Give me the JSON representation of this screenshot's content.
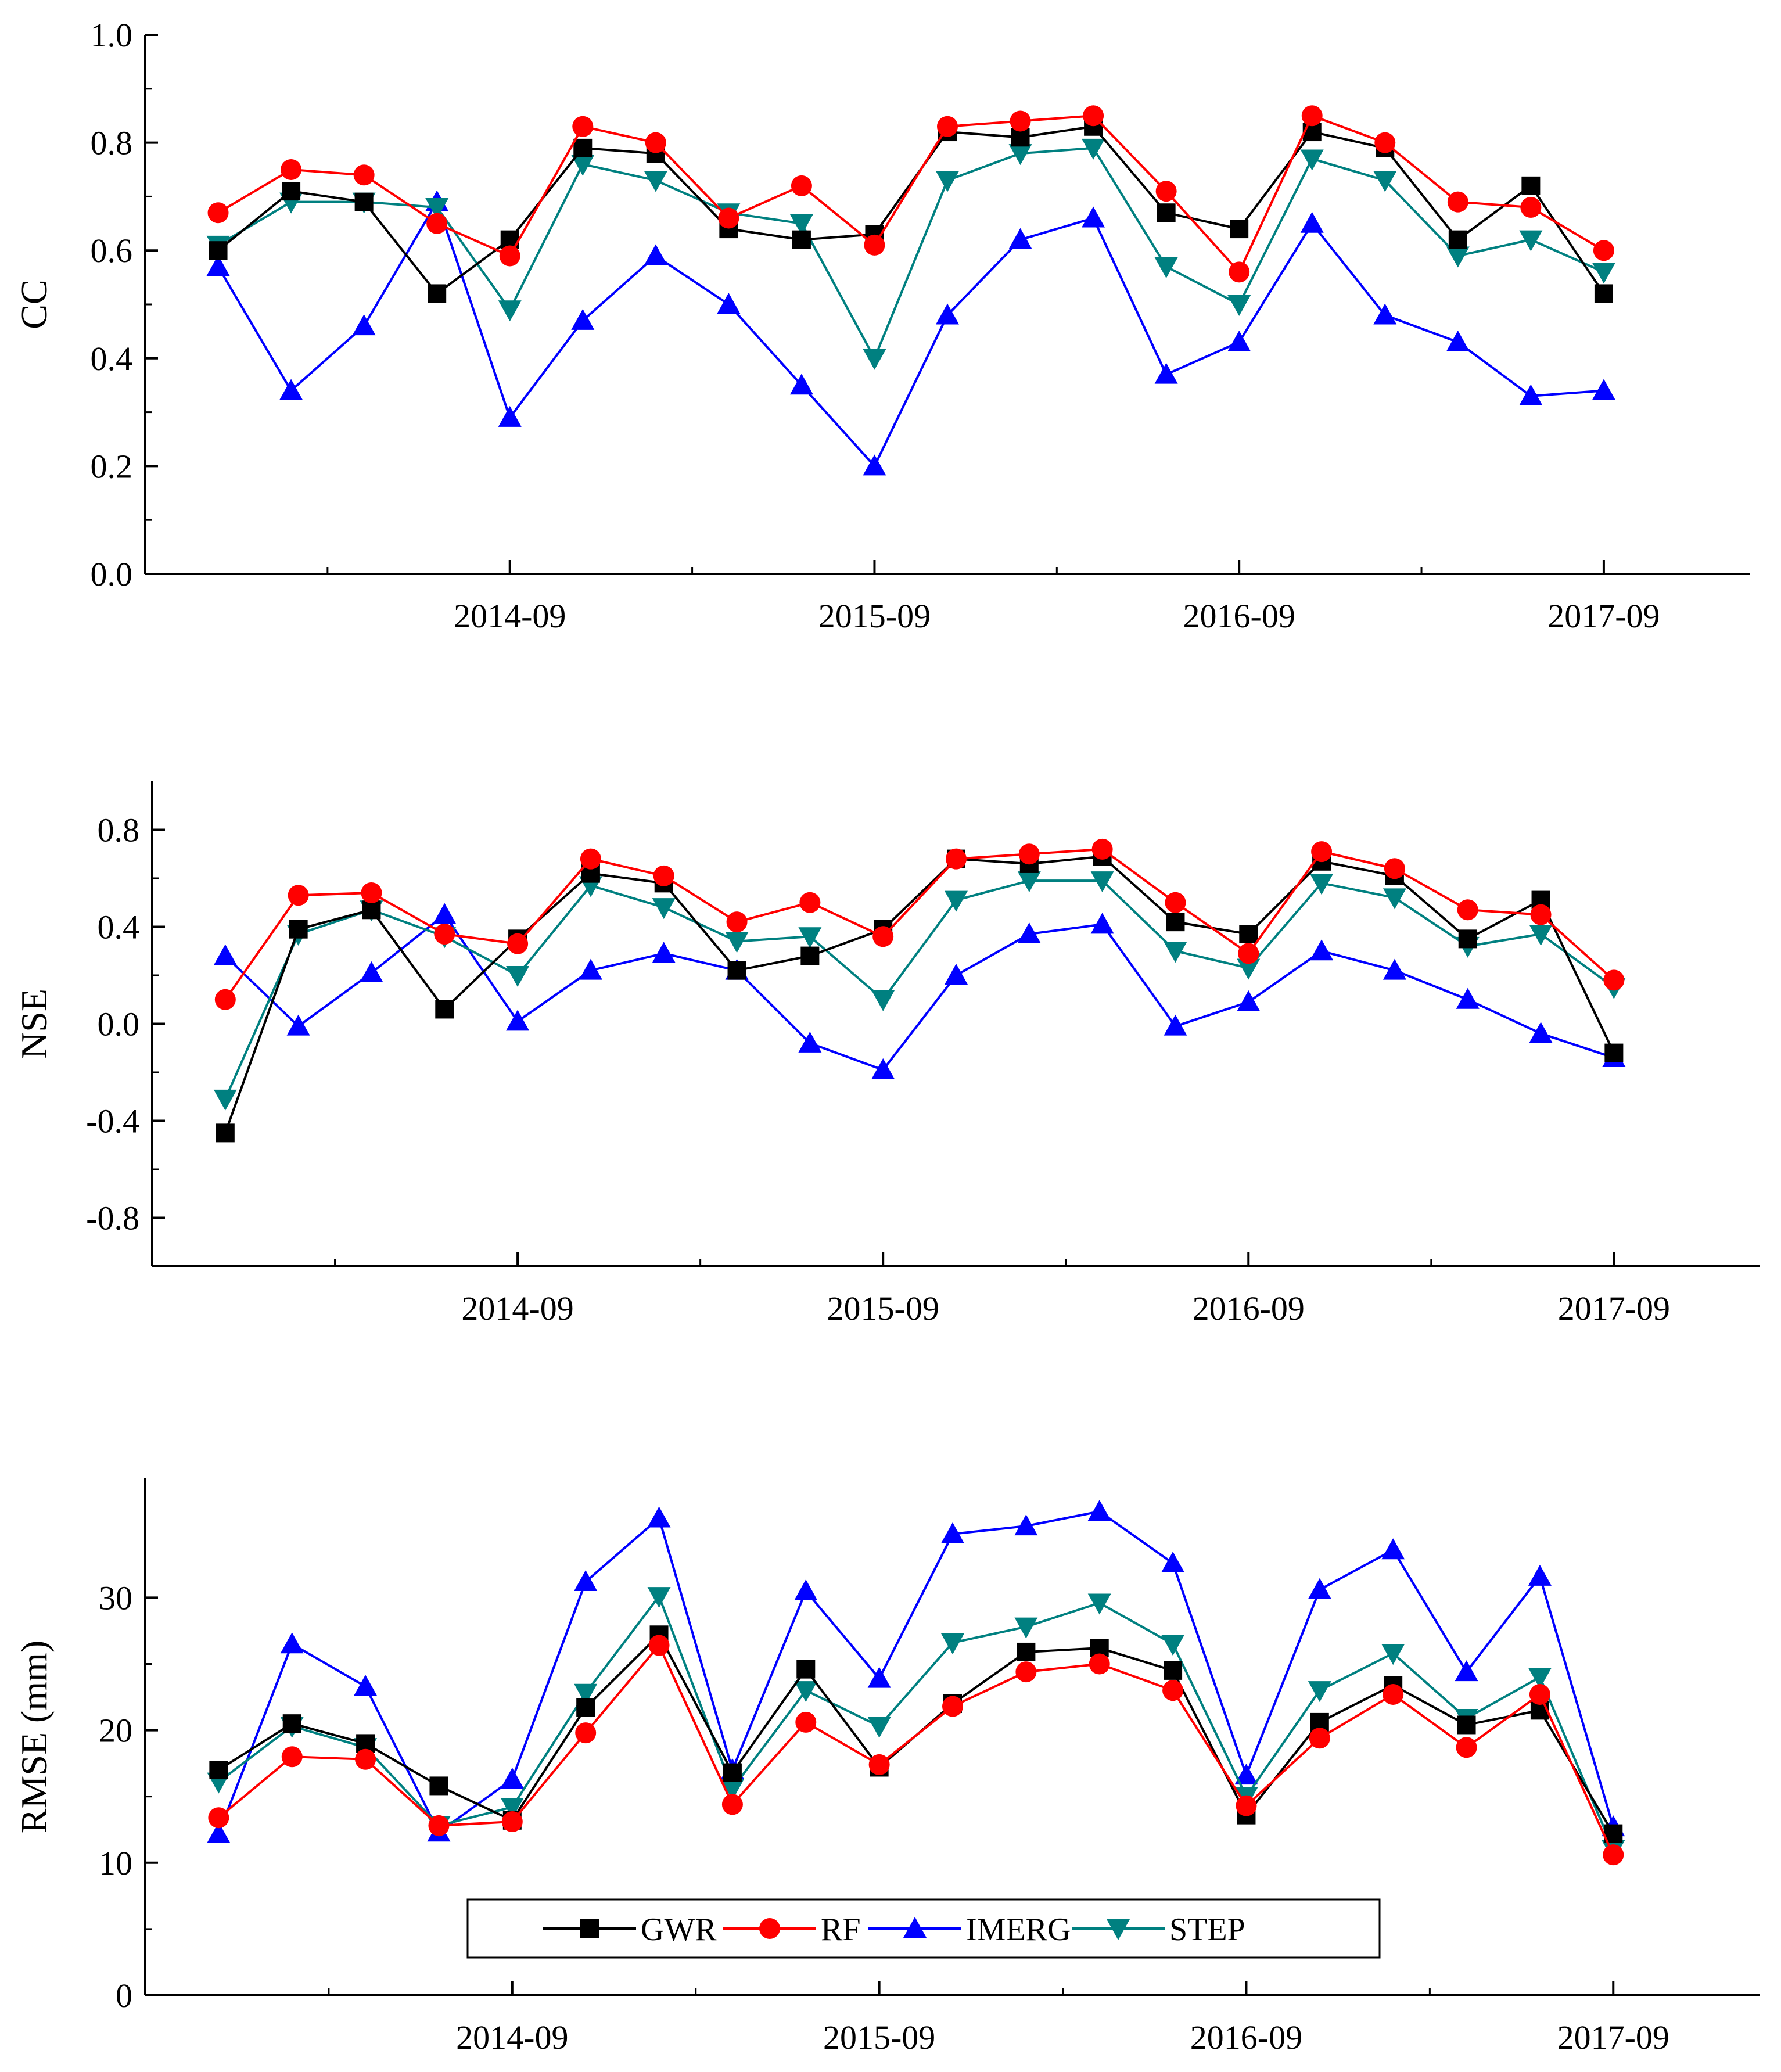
{
  "colors": {
    "GWR": "#000000",
    "RF": "#ff0000",
    "IMERG": "#0000ff",
    "STEP": "#008080"
  },
  "legend": {
    "entries": [
      "GWR",
      "RF",
      "IMERG",
      "STEP"
    ]
  },
  "chart_data": [
    {
      "type": "line",
      "title": "",
      "xlabel": "",
      "ylabel": "CC",
      "ylim": [
        0.0,
        1.0
      ],
      "yticks": [
        0.0,
        0.2,
        0.4,
        0.6,
        0.8,
        1.0
      ],
      "ytick_labels": [
        "0.0",
        "0.2",
        "0.4",
        "0.6",
        "0.8",
        "1.0"
      ],
      "xlim": [
        -1,
        21
      ],
      "xticks": [
        4,
        9,
        14,
        19
      ],
      "xtick_labels": [
        "2014-09",
        "2015-09",
        "2016-09",
        "2017-09"
      ],
      "x": [
        0,
        1,
        2,
        3,
        4,
        5,
        6,
        7,
        8,
        9,
        10,
        11,
        12,
        13,
        14,
        15,
        16,
        17,
        18,
        19
      ],
      "series": [
        {
          "name": "GWR",
          "marker": "square",
          "values": [
            0.6,
            0.71,
            0.69,
            0.52,
            0.62,
            0.79,
            0.78,
            0.64,
            0.62,
            0.63,
            0.82,
            0.81,
            0.83,
            0.67,
            0.64,
            0.82,
            0.79,
            0.62,
            0.72,
            0.52
          ]
        },
        {
          "name": "RF",
          "marker": "circle",
          "values": [
            0.67,
            0.75,
            0.74,
            0.65,
            0.59,
            0.83,
            0.8,
            0.66,
            0.72,
            0.61,
            0.83,
            0.84,
            0.85,
            0.71,
            0.56,
            0.85,
            0.8,
            0.69,
            0.68,
            0.6
          ]
        },
        {
          "name": "IMERG",
          "marker": "triangle-up",
          "values": [
            0.57,
            0.34,
            0.46,
            0.69,
            0.29,
            0.47,
            0.59,
            0.5,
            0.35,
            0.2,
            0.48,
            0.62,
            0.66,
            0.37,
            0.43,
            0.65,
            0.48,
            0.43,
            0.33,
            0.34
          ]
        },
        {
          "name": "STEP",
          "marker": "triangle-down",
          "values": [
            0.61,
            0.69,
            0.69,
            0.68,
            0.49,
            0.76,
            0.73,
            0.67,
            0.65,
            0.4,
            0.73,
            0.78,
            0.79,
            0.57,
            0.5,
            0.77,
            0.73,
            0.59,
            0.62,
            0.56
          ]
        }
      ]
    },
    {
      "type": "line",
      "title": "",
      "xlabel": "",
      "ylabel": "NSE",
      "ylim": [
        -1.0,
        1.0
      ],
      "yticks": [
        -0.8,
        -0.4,
        0.0,
        0.4,
        0.8
      ],
      "ytick_labels": [
        "-0.8",
        "-0.4",
        "0.0",
        "0.4",
        "0.8"
      ],
      "xlim": [
        -1,
        21
      ],
      "xticks": [
        4,
        9,
        14,
        19
      ],
      "xtick_labels": [
        "2014-09",
        "2015-09",
        "2016-09",
        "2017-09"
      ],
      "x": [
        0,
        1,
        2,
        3,
        4,
        5,
        6,
        7,
        8,
        9,
        10,
        11,
        12,
        13,
        14,
        15,
        16,
        17,
        18,
        19
      ],
      "series": [
        {
          "name": "GWR",
          "marker": "square",
          "values": [
            -0.45,
            0.39,
            0.47,
            0.06,
            0.35,
            0.62,
            0.58,
            0.22,
            0.28,
            0.39,
            0.68,
            0.66,
            0.69,
            0.42,
            0.37,
            0.67,
            0.61,
            0.35,
            0.51,
            -0.12
          ]
        },
        {
          "name": "RF",
          "marker": "circle",
          "values": [
            0.1,
            0.53,
            0.54,
            0.37,
            0.33,
            0.68,
            0.61,
            0.42,
            0.5,
            0.36,
            0.68,
            0.7,
            0.72,
            0.5,
            0.29,
            0.71,
            0.64,
            0.47,
            0.45,
            0.18
          ]
        },
        {
          "name": "IMERG",
          "marker": "triangle-up",
          "values": [
            0.28,
            -0.01,
            0.21,
            0.45,
            0.01,
            0.22,
            0.29,
            0.22,
            -0.08,
            -0.19,
            0.2,
            0.37,
            0.41,
            -0.01,
            0.09,
            0.3,
            0.22,
            0.1,
            -0.04,
            -0.14
          ]
        },
        {
          "name": "STEP",
          "marker": "triangle-down",
          "values": [
            -0.31,
            0.37,
            0.47,
            0.36,
            0.2,
            0.57,
            0.48,
            0.34,
            0.36,
            0.1,
            0.51,
            0.59,
            0.59,
            0.3,
            0.23,
            0.58,
            0.52,
            0.32,
            0.37,
            0.15
          ]
        }
      ]
    },
    {
      "type": "line",
      "title": "",
      "xlabel": "",
      "ylabel": "RMSE (mm)",
      "ylim": [
        0,
        39
      ],
      "yticks": [
        0,
        10,
        20,
        30
      ],
      "ytick_labels": [
        "0",
        "10",
        "20",
        "30"
      ],
      "xlim": [
        -1,
        21
      ],
      "xticks": [
        4,
        9,
        14,
        19
      ],
      "xtick_labels": [
        "2014-09",
        "2015-09",
        "2016-09",
        "2017-09"
      ],
      "legend_position": "bottom-center",
      "x": [
        0,
        1,
        2,
        3,
        4,
        5,
        6,
        7,
        8,
        9,
        10,
        11,
        12,
        13,
        14,
        15,
        16,
        17,
        18,
        19
      ],
      "series": [
        {
          "name": "GWR",
          "marker": "square",
          "values": [
            17.0,
            20.5,
            19.0,
            15.8,
            13.2,
            21.7,
            27.2,
            16.8,
            24.6,
            17.2,
            22.0,
            25.9,
            26.2,
            24.5,
            13.6,
            20.6,
            23.4,
            20.4,
            21.5,
            12.2
          ]
        },
        {
          "name": "RF",
          "marker": "circle",
          "values": [
            13.4,
            18.0,
            17.8,
            12.8,
            13.1,
            19.8,
            26.4,
            14.4,
            20.6,
            17.4,
            21.8,
            24.4,
            25.0,
            23.0,
            14.3,
            19.4,
            22.7,
            18.7,
            22.7,
            10.6
          ]
        },
        {
          "name": "IMERG",
          "marker": "triangle-up",
          "values": [
            12.2,
            26.5,
            23.3,
            12.3,
            16.3,
            31.2,
            36.0,
            17.0,
            30.5,
            23.9,
            34.8,
            35.4,
            36.5,
            32.6,
            16.6,
            30.6,
            33.6,
            24.4,
            31.6,
            12.7
          ]
        },
        {
          "name": "STEP",
          "marker": "triangle-down",
          "values": [
            16.1,
            20.3,
            18.7,
            12.8,
            14.2,
            22.8,
            30.1,
            15.6,
            23.0,
            20.3,
            26.6,
            27.8,
            29.6,
            26.5,
            15.0,
            23.0,
            25.8,
            20.9,
            24.0,
            11.0
          ]
        }
      ]
    }
  ]
}
